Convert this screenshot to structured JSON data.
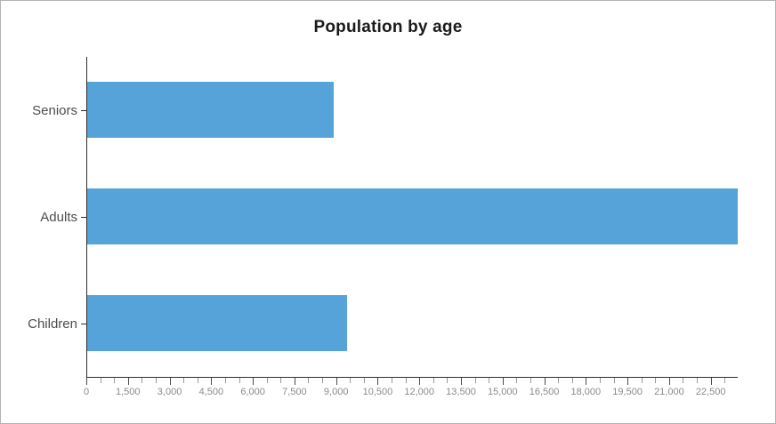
{
  "frame": {
    "border_color": "#b3b3b3",
    "background_color": "#ffffff"
  },
  "chart_data": {
    "type": "bar",
    "orientation": "horizontal",
    "title": "Population by age",
    "categories": [
      "Seniors",
      "Adults",
      "Children"
    ],
    "values": [
      8870,
      23440,
      9350
    ],
    "xlabel": "",
    "ylabel": "",
    "xlim": [
      0,
      23440
    ],
    "x_tick_interval_major": 1500,
    "x_tick_interval_minor": 500,
    "x_tick_labels": [
      "0",
      "1,500",
      "3,000",
      "4,500",
      "6,000",
      "7,500",
      "9,000",
      "10,500",
      "12,000",
      "13,500",
      "15,000",
      "16,500",
      "18,000",
      "19,500",
      "21,000",
      "22,500"
    ],
    "grid": "off",
    "legend": "none",
    "bar_color": "#56a3d9",
    "axis_color": "#2e2e2e",
    "major_tick_color": "#4d4d4d",
    "minor_tick_color": "#9a9a9a",
    "tick_label_color": "#8a8a8a",
    "category_label_color": "#4d4d4d",
    "title_color": "#1a1a1a"
  }
}
